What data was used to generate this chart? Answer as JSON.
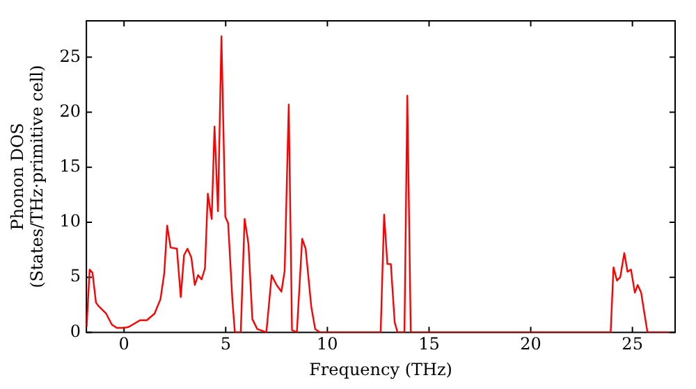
{
  "chart_data": {
    "type": "line",
    "xlabel": "Frequency (THz)",
    "ylabel": "Phonon DOS\n(States/THz·primitive cell)",
    "x": [
      -1.84,
      -1.69,
      -1.55,
      -1.38,
      -1.26,
      -0.88,
      -0.6,
      -0.36,
      0,
      0.24,
      0.79,
      1.12,
      1.5,
      1.79,
      1.98,
      2.12,
      2.29,
      2.6,
      2.79,
      2.95,
      3.12,
      3.31,
      3.48,
      3.64,
      3.81,
      3.98,
      4.12,
      4.31,
      4.45,
      4.62,
      4.79,
      4.98,
      5.12,
      5.33,
      5.45,
      5.74,
      5.93,
      6.12,
      6.31,
      6.55,
      7.0,
      7.26,
      7.5,
      7.74,
      7.9,
      8.1,
      8.26,
      8.5,
      8.76,
      8.93,
      9.21,
      9.4,
      9.64,
      12.62,
      12.79,
      12.95,
      13.12,
      13.31,
      13.45,
      13.79,
      13.93,
      14.1,
      23.93,
      24.07,
      24.24,
      24.4,
      24.6,
      24.76,
      24.93,
      25.12,
      25.26,
      25.43,
      25.6,
      25.74,
      26.8
    ],
    "series": [
      {
        "color": "#ff0000",
        "values": [
          0.5,
          5.7,
          5.4,
          2.7,
          2.4,
          1.7,
          0.7,
          0.4,
          0.4,
          0.5,
          1.1,
          1.1,
          1.7,
          3.0,
          5.4,
          9.7,
          7.7,
          7.6,
          3.2,
          7.0,
          7.6,
          6.8,
          4.3,
          5.2,
          4.8,
          5.8,
          12.6,
          10.3,
          18.7,
          11.0,
          26.9,
          10.5,
          9.9,
          2.9,
          0,
          0,
          10.3,
          8.0,
          1.2,
          0.3,
          0,
          5.2,
          4.3,
          3.7,
          5.6,
          20.7,
          0.2,
          0,
          8.5,
          7.6,
          2.3,
          0.3,
          0,
          0,
          10.7,
          6.2,
          6.2,
          0.9,
          0,
          0,
          21.5,
          0,
          0,
          5.9,
          4.7,
          5.0,
          7.2,
          5.5,
          5.7,
          3.6,
          4.3,
          3.6,
          1.6,
          0,
          0
        ]
      }
    ],
    "xlim": [
      -1.85,
      27.1
    ],
    "ylim": [
      0,
      28.3
    ],
    "xticks": [
      0,
      5,
      10,
      15,
      20,
      25
    ],
    "yticks": [
      0,
      5,
      10,
      15,
      20,
      25
    ],
    "grid": false,
    "legend": false,
    "marker": "none",
    "line_style": "solid"
  }
}
